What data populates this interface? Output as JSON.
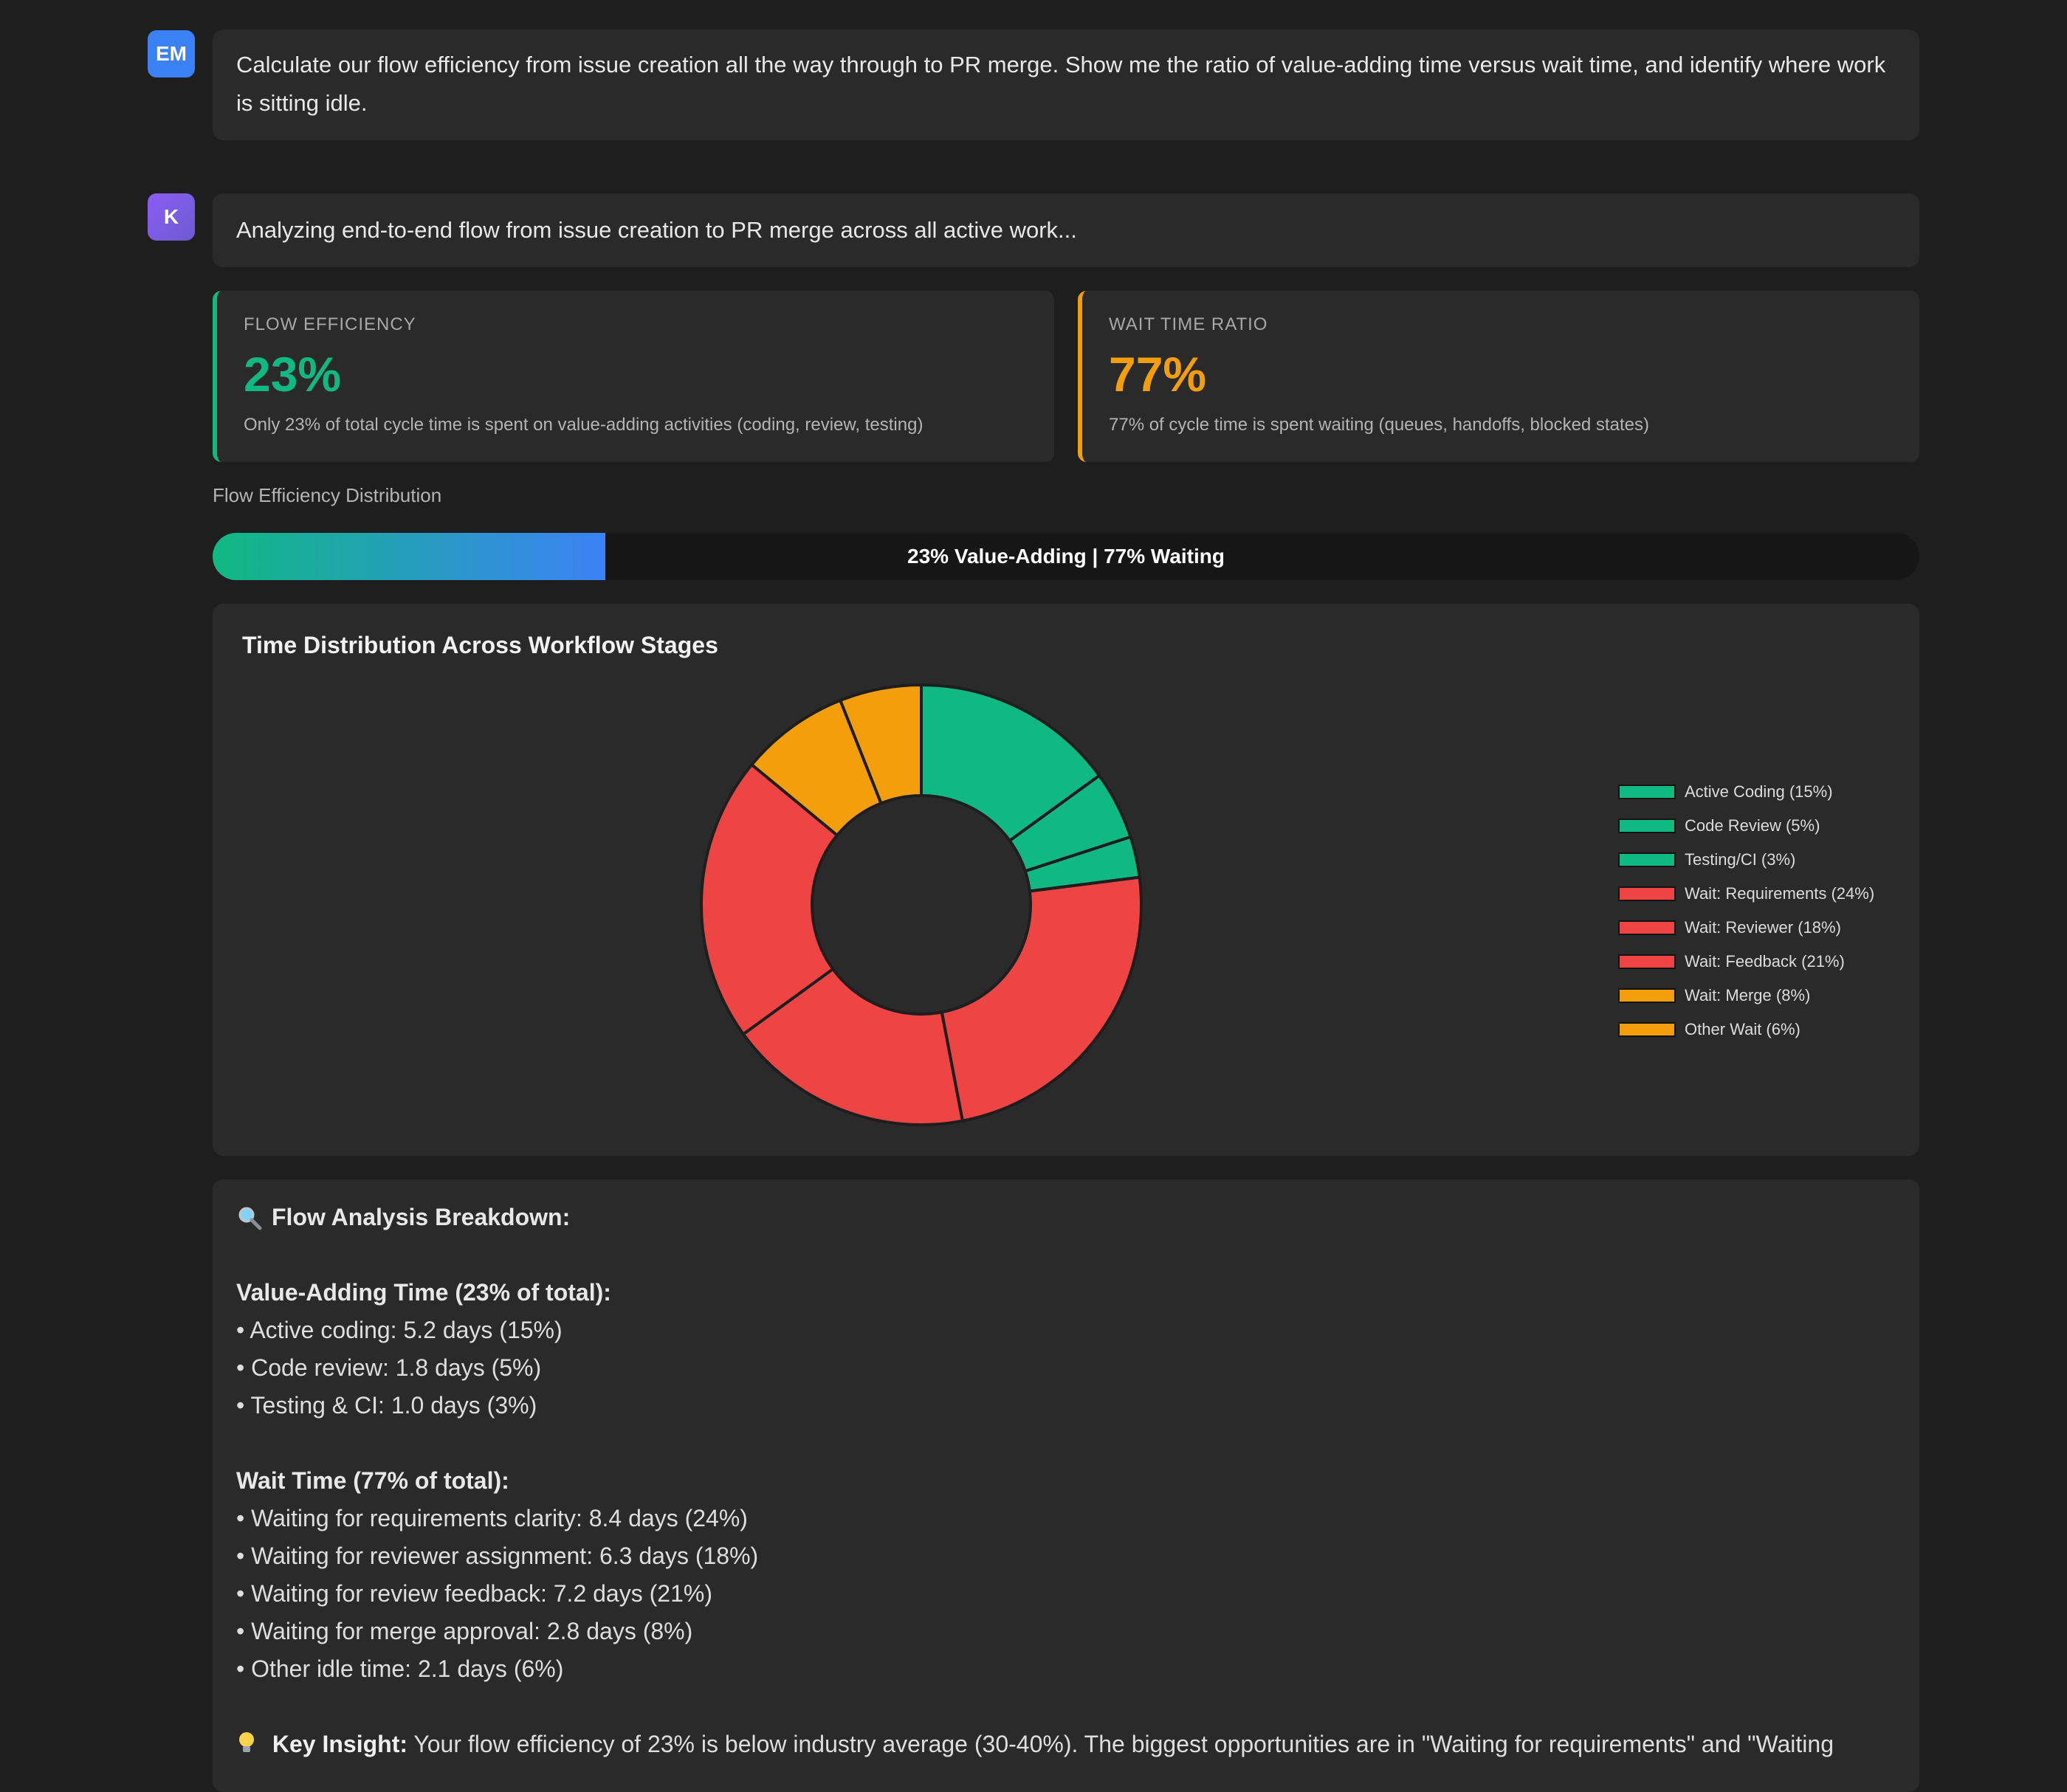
{
  "conversation": {
    "user": {
      "avatar": "EM",
      "text": "Calculate our flow efficiency from issue creation all the way through to PR merge. Show me the ratio of value-adding time versus wait time, and identify where work is sitting idle."
    },
    "assistant": {
      "avatar": "K",
      "text": "Analyzing end-to-end flow from issue creation to PR merge across all active work..."
    }
  },
  "metrics": {
    "flow": {
      "label": "FLOW EFFICIENCY",
      "value": "23%",
      "desc": "Only 23% of total cycle time is spent on value-adding activities (coding, review, testing)",
      "color": "#10b981"
    },
    "wait": {
      "label": "WAIT TIME RATIO",
      "value": "77%",
      "desc": "77% of cycle time is spent waiting (queues, handoffs, blocked states)",
      "color": "#f59e0b"
    }
  },
  "distribution": {
    "title": "Flow Efficiency Distribution",
    "value_adding_pct": 23,
    "label": "23% Value-Adding | 77% Waiting"
  },
  "chart_data": {
    "type": "pie",
    "title": "Time Distribution Across Workflow Stages",
    "legend_position": "right",
    "categories": [
      "Active Coding (15%)",
      "Code Review (5%)",
      "Testing/CI (3%)",
      "Wait: Requirements (24%)",
      "Wait: Reviewer (18%)",
      "Wait: Feedback (21%)",
      "Wait: Merge (8%)",
      "Other Wait (6%)"
    ],
    "values": [
      15,
      5,
      3,
      24,
      18,
      21,
      8,
      6
    ],
    "colors": [
      "#10b981",
      "#10b981",
      "#10b981",
      "#ef4444",
      "#ef4444",
      "#ef4444",
      "#f59e0b",
      "#f59e0b"
    ]
  },
  "breakdown": {
    "title": "Flow Analysis Breakdown:",
    "icon": "magnifier-icon",
    "value_title": "Value-Adding Time (23% of total):",
    "value_items": [
      "Active coding: 5.2 days (15%)",
      "Code review: 1.8 days (5%)",
      "Testing & CI: 1.0 days (3%)"
    ],
    "wait_title": "Wait Time (77% of total):",
    "wait_items": [
      "Waiting for requirements clarity: 8.4 days (24%)",
      "Waiting for reviewer assignment: 6.3 days (18%)",
      "Waiting for review feedback: 7.2 days (21%)",
      "Waiting for merge approval: 2.8 days (8%)",
      "Other idle time: 2.1 days (6%)"
    ],
    "insight_label": "Key Insight:",
    "insight_icon": "lightbulb-icon",
    "insight_text": " Your flow efficiency of 23% is below industry average (30-40%). The biggest opportunities are in \"Waiting for requirements\" and \"Waiting"
  }
}
